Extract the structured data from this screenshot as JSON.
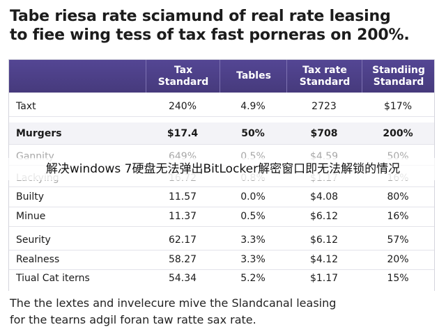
{
  "title": {
    "line1": "Tabe riesa rate sciamund of real rate leasing",
    "line2": "to fiee wing tess of tax fast porneras on 200%."
  },
  "table": {
    "headers": [
      "",
      "Tax\nStandard",
      "Tables",
      "Tax rate\nStandard",
      "Standiing\nStandard"
    ],
    "rows": [
      {
        "cells": [
          "Taxt",
          "240%",
          "4.9%",
          "2723",
          "$17%"
        ]
      },
      {
        "cells": [
          "Murgers",
          "$17.4",
          "50%",
          "$708",
          "200%"
        ]
      },
      {
        "cells": [
          "Gannity",
          "649%",
          "0.5%",
          "$4.59",
          "50%"
        ]
      },
      {
        "cells": [
          "Lackying",
          "16.72",
          "0.8%",
          "$1.17",
          "16%"
        ]
      },
      {
        "cells": [
          "Builty",
          "11.57",
          "0.0%",
          "$4.08",
          "80%"
        ]
      },
      {
        "cells": [
          "Minue",
          "11.37",
          "0.5%",
          "$6.12",
          "16%"
        ]
      },
      {
        "cells": [
          "Seurity",
          "62.17",
          "3.3%",
          "$6.12",
          "57%"
        ]
      },
      {
        "cells": [
          "Realness",
          "58.27",
          "3.3%",
          "$4.12",
          "20%"
        ]
      },
      {
        "cells": [
          "Tiual Cat iterns",
          "54.34",
          "5.2%",
          "$1.17",
          "15%"
        ]
      }
    ]
  },
  "overlay_text": "解决windows 7硬盘无法弹出BitLocker解密窗口即无法解锁的情况",
  "caption": {
    "line1": "The the lextes and invelecure mive the Slandcanal leasing",
    "line2": "for the tearns adgil foran taw ratte sax rate."
  }
}
